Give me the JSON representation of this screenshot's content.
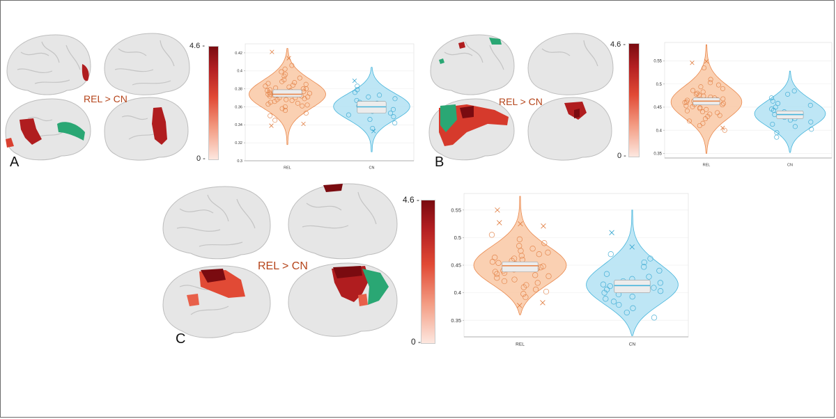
{
  "contrast_label": "REL > CN",
  "panel_letters": {
    "a": "A",
    "b": "B",
    "c": "C"
  },
  "colorbar": {
    "max_label": "4.6 -",
    "min_label": "0 -"
  },
  "colors": {
    "rel_fill": "#f9c8a4",
    "rel_edge": "#e9874c",
    "rel_marker": "#e07a3c",
    "cn_fill": "#b3e2f3",
    "cn_edge": "#45b4db",
    "cn_marker": "#2ea3cf",
    "brain_surface": "#e6e6e6",
    "cluster_red": "#b01d1f",
    "cluster_dark": "#7a0b10",
    "cluster_green": "#2aa774",
    "contrast_text": "#b5441a"
  },
  "chart_data": [
    {
      "id": "A",
      "type": "scatter",
      "categories": [
        "REL",
        "CN"
      ],
      "ylim": [
        0.3,
        0.43
      ],
      "yticks": [
        "0.3",
        "0.32",
        "0.34",
        "0.36",
        "0.38",
        "0.4",
        "0.42"
      ],
      "groups": [
        {
          "name": "REL",
          "median": 0.374,
          "q1": 0.371,
          "q3": 0.379,
          "min": 0.318,
          "max": 0.425,
          "values": [
            0.345,
            0.35,
            0.353,
            0.356,
            0.358,
            0.36,
            0.361,
            0.362,
            0.363,
            0.364,
            0.365,
            0.366,
            0.367,
            0.368,
            0.368,
            0.369,
            0.37,
            0.37,
            0.371,
            0.372,
            0.372,
            0.373,
            0.373,
            0.374,
            0.374,
            0.375,
            0.375,
            0.376,
            0.376,
            0.377,
            0.378,
            0.378,
            0.379,
            0.38,
            0.38,
            0.381,
            0.382,
            0.383,
            0.384,
            0.385,
            0.386,
            0.387,
            0.388,
            0.39,
            0.392,
            0.394,
            0.396,
            0.399,
            0.402,
            0.406
          ],
          "outliers": [
            0.421,
            0.414,
            0.341,
            0.339
          ]
        },
        {
          "name": "CN",
          "median": 0.36,
          "q1": 0.353,
          "q3": 0.366,
          "min": 0.31,
          "max": 0.404,
          "values": [
            0.336,
            0.342,
            0.346,
            0.349,
            0.351,
            0.353,
            0.355,
            0.357,
            0.358,
            0.36,
            0.361,
            0.362,
            0.364,
            0.365,
            0.367,
            0.369,
            0.371,
            0.373,
            0.376,
            0.379,
            0.383
          ],
          "outliers": [
            0.389,
            0.333
          ]
        }
      ]
    },
    {
      "id": "B",
      "type": "scatter",
      "categories": [
        "REL",
        "CN"
      ],
      "ylim": [
        0.34,
        0.59
      ],
      "yticks": [
        "0.35",
        "0.4",
        "0.45",
        "0.5",
        "0.55"
      ],
      "groups": [
        {
          "name": "REL",
          "median": 0.463,
          "q1": 0.455,
          "q3": 0.47,
          "min": 0.35,
          "max": 0.585,
          "values": [
            0.4,
            0.41,
            0.415,
            0.42,
            0.425,
            0.43,
            0.432,
            0.435,
            0.438,
            0.44,
            0.442,
            0.445,
            0.447,
            0.449,
            0.451,
            0.453,
            0.455,
            0.456,
            0.458,
            0.46,
            0.461,
            0.462,
            0.463,
            0.465,
            0.466,
            0.468,
            0.47,
            0.472,
            0.474,
            0.476,
            0.478,
            0.48,
            0.483,
            0.486,
            0.49,
            0.494,
            0.498,
            0.503,
            0.51,
            0.535
          ],
          "outliers": [
            0.546,
            0.549,
            0.405
          ]
        },
        {
          "name": "CN",
          "median": 0.434,
          "q1": 0.425,
          "q3": 0.442,
          "min": 0.352,
          "max": 0.528,
          "values": [
            0.385,
            0.395,
            0.402,
            0.408,
            0.413,
            0.418,
            0.422,
            0.425,
            0.428,
            0.431,
            0.434,
            0.437,
            0.44,
            0.443,
            0.446,
            0.45,
            0.454,
            0.458,
            0.463,
            0.47,
            0.478,
            0.485
          ],
          "outliers": []
        }
      ]
    },
    {
      "id": "C",
      "type": "scatter",
      "categories": [
        "REL",
        "CN"
      ],
      "ylim": [
        0.32,
        0.58
      ],
      "yticks": [
        "0.35",
        "0.4",
        "0.45",
        "0.5",
        "0.55"
      ],
      "groups": [
        {
          "name": "REL",
          "median": 0.449,
          "q1": 0.438,
          "q3": 0.456,
          "min": 0.36,
          "max": 0.575,
          "values": [
            0.392,
            0.398,
            0.402,
            0.406,
            0.41,
            0.414,
            0.418,
            0.421,
            0.424,
            0.427,
            0.43,
            0.432,
            0.434,
            0.436,
            0.438,
            0.44,
            0.442,
            0.444,
            0.446,
            0.448,
            0.45,
            0.452,
            0.454,
            0.456,
            0.458,
            0.46,
            0.462,
            0.464,
            0.467,
            0.47,
            0.473,
            0.476,
            0.48,
            0.485,
            0.49,
            0.497,
            0.505
          ],
          "outliers": [
            0.55,
            0.525,
            0.521,
            0.527,
            0.377,
            0.382
          ]
        },
        {
          "name": "CN",
          "median": 0.413,
          "q1": 0.4,
          "q3": 0.423,
          "min": 0.322,
          "max": 0.55,
          "values": [
            0.355,
            0.364,
            0.372,
            0.378,
            0.384,
            0.389,
            0.393,
            0.397,
            0.4,
            0.403,
            0.406,
            0.409,
            0.412,
            0.415,
            0.418,
            0.421,
            0.425,
            0.429,
            0.434,
            0.44,
            0.447,
            0.455,
            0.462,
            0.47
          ],
          "outliers": [
            0.509,
            0.483
          ]
        }
      ]
    }
  ]
}
